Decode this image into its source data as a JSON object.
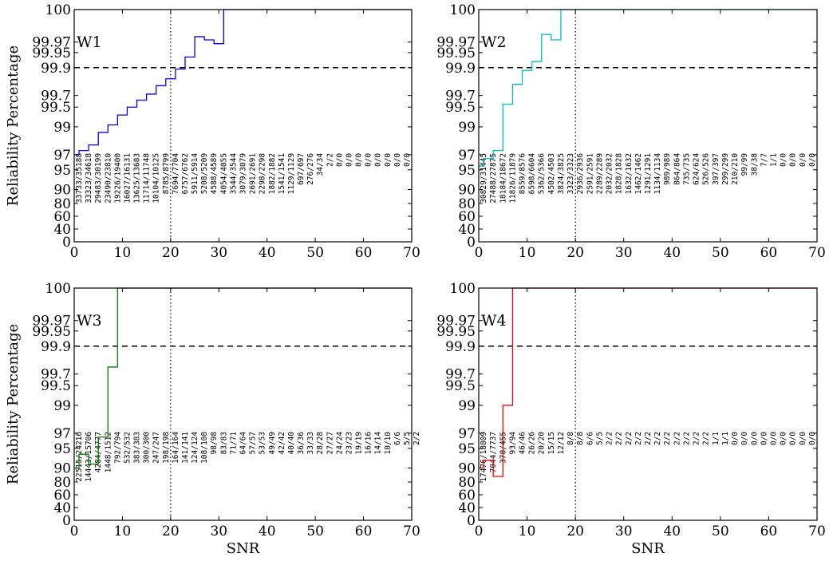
{
  "chart_data": [
    {
      "type": "line",
      "panel_label": "W1",
      "color": "#0000ff",
      "xlabel": "",
      "ylabel": "Reliability Percentage",
      "xlim": [
        0,
        70
      ],
      "xticks": [
        "0",
        "10",
        "20",
        "30",
        "40",
        "50",
        "60",
        "70"
      ],
      "yticks": [
        "0",
        "40",
        "60",
        "80",
        "90",
        "95",
        "97",
        "99",
        "99.5",
        "99.7",
        "99.9",
        "99.95",
        "99.97",
        "100"
      ],
      "reference_lines": {
        "vertical_dotted_x": 20,
        "horizontal_dashed_y": 99.9
      },
      "x": [
        0,
        1,
        3,
        5,
        7,
        9,
        11,
        13,
        15,
        17,
        19,
        21,
        23,
        25,
        27,
        29,
        31,
        70
      ],
      "y": [
        97,
        97.3,
        97.7,
        98.6,
        99.05,
        99.3,
        99.5,
        99.62,
        99.71,
        99.77,
        99.82,
        99.89,
        99.935,
        99.975,
        99.972,
        99.967,
        100,
        100
      ],
      "counts": [
        "33733/35188",
        "33323/34618",
        "29483/30199",
        "23490/23810",
        "19226/19400",
        "16027/16131",
        "13625/13683",
        "11714/11748",
        "10104/10125",
        "8785/8799",
        "7694/7704",
        "6757/6762",
        "5911/5914",
        "5208/5209",
        "4588/4589",
        "4054/4055",
        "3544/3544",
        "3079/3079",
        "2691/2691",
        "2298/2298",
        "1882/1882",
        "1541/1541",
        "1129/1129",
        "697/697",
        "276/276",
        "34/34",
        "2/2",
        "0/0",
        "0/0",
        "0/0",
        "0/0",
        "0/0",
        "0/0",
        "0/0",
        "0/0"
      ]
    },
    {
      "type": "line",
      "panel_label": "W2",
      "color": "#00bfbf",
      "xlabel": "",
      "ylabel": "",
      "xlim": [
        0,
        70
      ],
      "xticks": [
        "0",
        "10",
        "20",
        "30",
        "40",
        "50",
        "60",
        "70"
      ],
      "yticks": [
        "0",
        "40",
        "60",
        "80",
        "90",
        "95",
        "97",
        "99",
        "99.5",
        "99.7",
        "99.9",
        "99.95",
        "99.97",
        "100"
      ],
      "reference_lines": {
        "vertical_dotted_x": 20,
        "horizontal_dashed_y": 99.9
      },
      "x": [
        0,
        1,
        3,
        5,
        7,
        9,
        11,
        13,
        15,
        17,
        70
      ],
      "y": [
        95.5,
        96.5,
        97.3,
        99.55,
        99.78,
        99.88,
        99.92,
        99.977,
        99.972,
        100,
        100
      ],
      "counts": [
        "30829/31445",
        "27488/27875",
        "18184/18672",
        "11826/11879",
        "8559/8576",
        "6598/6604",
        "5362/5366",
        "4502/4503",
        "3824/3825",
        "3323/3323",
        "2936/2936",
        "2591/2591",
        "2289/2289",
        "2032/2032",
        "1828/1828",
        "1632/1632",
        "1462/1462",
        "1291/1291",
        "1134/1134",
        "989/989",
        "864/864",
        "735/735",
        "624/624",
        "526/526",
        "397/397",
        "299/299",
        "210/210",
        "99/99",
        "38/38",
        "7/7",
        "1/1",
        "0/0",
        "0/0",
        "0/0",
        "0/0"
      ]
    },
    {
      "type": "line",
      "panel_label": "W3",
      "color": "#007f00",
      "xlabel": "SNR",
      "ylabel": "Reliability Percentage",
      "xlim": [
        0,
        70
      ],
      "xticks": [
        "0",
        "10",
        "20",
        "30",
        "40",
        "50",
        "60",
        "70"
      ],
      "yticks": [
        "0",
        "40",
        "60",
        "80",
        "90",
        "95",
        "97",
        "99",
        "99.5",
        "99.7",
        "99.9",
        "99.95",
        "99.97",
        "100"
      ],
      "reference_lines": {
        "vertical_dotted_x": 20,
        "horizontal_dashed_y": 99.9
      },
      "x": [
        0,
        1,
        3,
        5,
        7,
        9,
        70
      ],
      "y": [
        90,
        93.5,
        91,
        96.5,
        99.75,
        100,
        100
      ],
      "counts": [
        "22515/24216",
        "14443/15706",
        "4284/4777",
        "1448/1512",
        "792/794",
        "532/532",
        "383/383",
        "300/300",
        "247/247",
        "198/198",
        "164/164",
        "141/141",
        "124/124",
        "108/108",
        "98/98",
        "83/83",
        "71/71",
        "64/64",
        "57/57",
        "53/53",
        "49/49",
        "42/42",
        "40/40",
        "36/36",
        "33/33",
        "28/28",
        "27/27",
        "24/24",
        "23/23",
        "19/19",
        "16/16",
        "14/14",
        "10/10",
        "6/6",
        "5/5",
        "2/2"
      ]
    },
    {
      "type": "line",
      "panel_label": "W4",
      "color": "#ff0000",
      "xlabel": "SNR",
      "ylabel": "",
      "xlim": [
        0,
        70
      ],
      "xticks": [
        "0",
        "10",
        "20",
        "30",
        "40",
        "50",
        "60",
        "70"
      ],
      "yticks": [
        "0",
        "40",
        "60",
        "80",
        "90",
        "95",
        "97",
        "99",
        "99.5",
        "99.7",
        "99.9",
        "99.95",
        "99.97",
        "100"
      ],
      "reference_lines": {
        "vertical_dotted_x": 20,
        "horizontal_dashed_y": 99.9
      },
      "x": [
        0,
        1,
        3,
        5,
        7,
        70
      ],
      "y": [
        90,
        92,
        84,
        99,
        100,
        100
      ],
      "counts": [
        "17476/18809",
        "7044/7737",
        "378/455",
        "93/94",
        "46/46",
        "26/26",
        "20/20",
        "15/15",
        "12/12",
        "8/8",
        "8/8",
        "6/6",
        "5/5",
        "2/2",
        "2/2",
        "2/2",
        "2/2",
        "2/2",
        "2/2",
        "2/2",
        "2/2",
        "2/2",
        "2/2",
        "2/2",
        "1/1",
        "1/1",
        "0/0",
        "0/0",
        "0/0",
        "0/0",
        "0/0",
        "0/0",
        "0/0",
        "0/0",
        "0/0"
      ]
    }
  ]
}
